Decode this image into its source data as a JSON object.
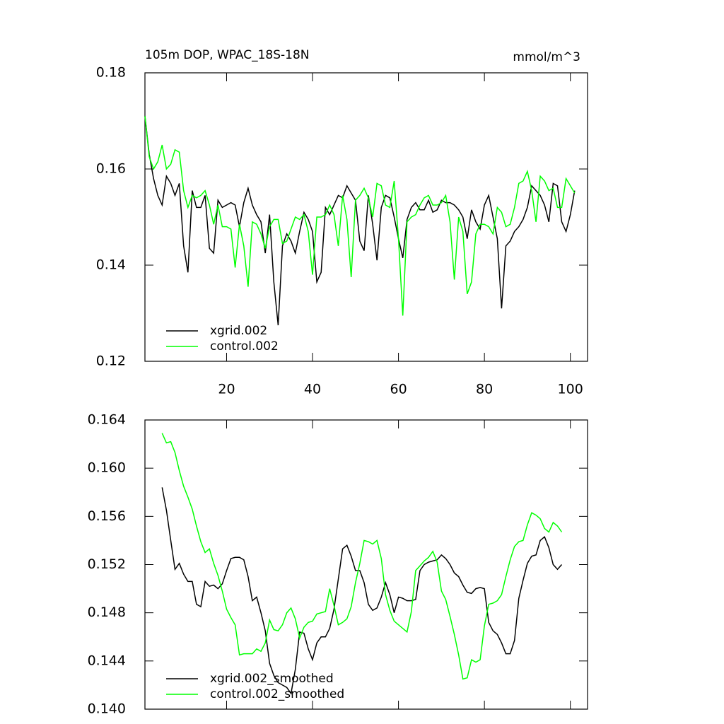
{
  "chart_data": [
    {
      "type": "line",
      "title": "105m DOP, WPAC_18S-18N",
      "subtitle": "mmol/m^3",
      "x": [
        1,
        2,
        3,
        4,
        5,
        6,
        7,
        8,
        9,
        10,
        11,
        12,
        13,
        14,
        15,
        16,
        17,
        18,
        19,
        20,
        21,
        22,
        23,
        24,
        25,
        26,
        27,
        28,
        29,
        30,
        31,
        32,
        33,
        34,
        35,
        36,
        37,
        38,
        39,
        40,
        41,
        42,
        43,
        44,
        45,
        46,
        47,
        48,
        49,
        50,
        51,
        52,
        53,
        54,
        55,
        56,
        57,
        58,
        59,
        60,
        61,
        62,
        63,
        64,
        65,
        66,
        67,
        68,
        69,
        70,
        71,
        72,
        73,
        74,
        75,
        76,
        77,
        78,
        79,
        80,
        81,
        82,
        83,
        84,
        85,
        86,
        87,
        88,
        89,
        90,
        91,
        92,
        93,
        94,
        95,
        96,
        97,
        98,
        99,
        100,
        101
      ],
      "series": [
        {
          "name": "xgrid.002",
          "color": "#000000",
          "values": [
            0.171,
            0.163,
            0.158,
            0.1545,
            0.1525,
            0.1585,
            0.157,
            0.1545,
            0.157,
            0.144,
            0.1385,
            0.1555,
            0.152,
            0.152,
            0.1545,
            0.1435,
            0.1425,
            0.1535,
            0.152,
            0.1525,
            0.153,
            0.1525,
            0.148,
            0.153,
            0.156,
            0.1525,
            0.1505,
            0.149,
            0.1425,
            0.1505,
            0.1365,
            0.1275,
            0.144,
            0.1465,
            0.145,
            0.1425,
            0.147,
            0.151,
            0.1495,
            0.147,
            0.1365,
            0.1385,
            0.152,
            0.1505,
            0.1525,
            0.1545,
            0.154,
            0.1565,
            0.155,
            0.1535,
            0.145,
            0.143,
            0.1545,
            0.1485,
            0.141,
            0.152,
            0.1545,
            0.154,
            0.15,
            0.1455,
            0.1415,
            0.1495,
            0.152,
            0.153,
            0.1515,
            0.1515,
            0.1535,
            0.151,
            0.1515,
            0.1535,
            0.153,
            0.153,
            0.1525,
            0.1515,
            0.15,
            0.1455,
            0.1515,
            0.149,
            0.1475,
            0.1525,
            0.1545,
            0.15,
            0.1455,
            0.131,
            0.144,
            0.145,
            0.147,
            0.148,
            0.1495,
            0.152,
            0.1565,
            0.1555,
            0.1545,
            0.1525,
            0.149,
            0.157,
            0.1565,
            0.149,
            0.147,
            0.1505,
            0.1555
          ]
        },
        {
          "name": "control.002",
          "color": "#00ff00",
          "values": [
            0.171,
            0.1625,
            0.16,
            0.1615,
            0.165,
            0.16,
            0.161,
            0.164,
            0.1635,
            0.1555,
            0.152,
            0.1545,
            0.154,
            0.1545,
            0.1555,
            0.1525,
            0.1485,
            0.1525,
            0.148,
            0.148,
            0.1475,
            0.1395,
            0.1485,
            0.144,
            0.1355,
            0.149,
            0.1485,
            0.1465,
            0.1435,
            0.148,
            0.1495,
            0.1495,
            0.1445,
            0.145,
            0.1475,
            0.15,
            0.1495,
            0.1505,
            0.147,
            0.138,
            0.15,
            0.15,
            0.1505,
            0.1525,
            0.1505,
            0.144,
            0.1545,
            0.1495,
            0.1375,
            0.1535,
            0.1545,
            0.156,
            0.154,
            0.15,
            0.157,
            0.1565,
            0.1525,
            0.152,
            0.1575,
            0.1455,
            0.1295,
            0.149,
            0.15,
            0.1505,
            0.1525,
            0.154,
            0.1545,
            0.1525,
            0.1525,
            0.153,
            0.1545,
            0.149,
            0.137,
            0.15,
            0.147,
            0.134,
            0.1365,
            0.1465,
            0.1485,
            0.1485,
            0.148,
            0.1465,
            0.152,
            0.151,
            0.148,
            0.1485,
            0.152,
            0.157,
            0.1575,
            0.1595,
            0.1555,
            0.149,
            0.1585,
            0.1575,
            0.1555,
            0.156,
            0.152,
            0.152,
            0.158,
            0.1565,
            0.155
          ]
        }
      ],
      "xlim": [
        1,
        104
      ],
      "xticks": [
        20,
        40,
        60,
        80,
        100
      ],
      "ylim": [
        0.12,
        0.18
      ],
      "yticks": [
        0.12,
        0.14,
        0.16,
        0.18
      ],
      "legend": "lower left"
    },
    {
      "type": "line",
      "x": [
        5,
        6,
        7,
        8,
        9,
        10,
        11,
        12,
        13,
        14,
        15,
        16,
        17,
        18,
        19,
        20,
        21,
        22,
        23,
        24,
        25,
        26,
        27,
        28,
        29,
        30,
        31,
        32,
        33,
        34,
        35,
        36,
        37,
        38,
        39,
        40,
        41,
        42,
        43,
        44,
        45,
        46,
        47,
        48,
        49,
        50,
        51,
        52,
        53,
        54,
        55,
        56,
        57,
        58,
        59,
        60,
        61,
        62,
        63,
        64,
        65,
        66,
        67,
        68,
        69,
        70,
        71,
        72,
        73,
        74,
        75,
        76,
        77,
        78,
        79,
        80,
        81,
        82,
        83,
        84,
        85,
        86,
        87,
        88,
        89,
        90,
        91,
        92,
        93,
        94,
        95,
        96,
        97,
        98
      ],
      "series": [
        {
          "name": "xgrid.002_smoothed",
          "color": "#000000",
          "values": [
            0.1584,
            0.1565,
            0.154,
            0.1516,
            0.1521,
            0.1512,
            0.1506,
            0.1506,
            0.1487,
            0.1485,
            0.1506,
            0.1502,
            0.1503,
            0.15,
            0.1504,
            0.1515,
            0.1525,
            0.1526,
            0.1526,
            0.1524,
            0.151,
            0.149,
            0.1493,
            0.148,
            0.1465,
            0.1438,
            0.1428,
            0.1422,
            0.142,
            0.1418,
            0.1413,
            0.1433,
            0.1464,
            0.1463,
            0.145,
            0.1441,
            0.1455,
            0.146,
            0.146,
            0.1467,
            0.1483,
            0.1508,
            0.1533,
            0.1536,
            0.1527,
            0.1515,
            0.1515,
            0.1505,
            0.1487,
            0.1482,
            0.1484,
            0.1493,
            0.1505,
            0.1495,
            0.148,
            0.1493,
            0.1492,
            0.149,
            0.149,
            0.1491,
            0.1515,
            0.152,
            0.1522,
            0.1523,
            0.1524,
            0.1528,
            0.1525,
            0.152,
            0.1513,
            0.151,
            0.1503,
            0.1497,
            0.1496,
            0.15,
            0.1501,
            0.15,
            0.1472,
            0.1465,
            0.1462,
            0.1455,
            0.1446,
            0.1446,
            0.1457,
            0.1492,
            0.1507,
            0.1521,
            0.1527,
            0.1528,
            0.154,
            0.1543,
            0.1534,
            0.152,
            0.1516,
            0.152
          ]
        },
        {
          "name": "control.002_smoothed",
          "color": "#00ff00",
          "values": [
            0.1629,
            0.1621,
            0.1622,
            0.1613,
            0.1598,
            0.1585,
            0.1576,
            0.1566,
            0.1552,
            0.1539,
            0.153,
            0.1533,
            0.1521,
            0.1511,
            0.1498,
            0.1483,
            0.1476,
            0.147,
            0.1445,
            0.1446,
            0.1446,
            0.1446,
            0.145,
            0.1448,
            0.1455,
            0.1474,
            0.1466,
            0.1465,
            0.147,
            0.148,
            0.1484,
            0.1475,
            0.1459,
            0.1468,
            0.1472,
            0.1473,
            0.1479,
            0.148,
            0.1481,
            0.15,
            0.1486,
            0.147,
            0.1472,
            0.1475,
            0.1485,
            0.1505,
            0.1521,
            0.154,
            0.1539,
            0.1537,
            0.154,
            0.1525,
            0.1495,
            0.1482,
            0.1473,
            0.147,
            0.1467,
            0.1464,
            0.1481,
            0.1515,
            0.1519,
            0.1523,
            0.1526,
            0.1531,
            0.1522,
            0.1498,
            0.1491,
            0.1477,
            0.1462,
            0.1445,
            0.1425,
            0.1426,
            0.1441,
            0.1439,
            0.1441,
            0.1469,
            0.1487,
            0.1488,
            0.149,
            0.1495,
            0.151,
            0.1524,
            0.1535,
            0.1539,
            0.154,
            0.1553,
            0.1563,
            0.1561,
            0.1558,
            0.155,
            0.1547,
            0.1555,
            0.1552,
            0.1547
          ]
        }
      ],
      "xlim": [
        1,
        104
      ],
      "xticks": [
        20,
        40,
        60,
        80,
        100
      ],
      "ylim": [
        0.14,
        0.164
      ],
      "yticks": [
        {
          "value": 0.14,
          "label": "0.140"
        },
        0.144,
        0.148,
        0.152,
        0.156,
        {
          "value": 0.16,
          "label": "0.160"
        },
        0.164
      ],
      "legend": "lower left"
    }
  ]
}
